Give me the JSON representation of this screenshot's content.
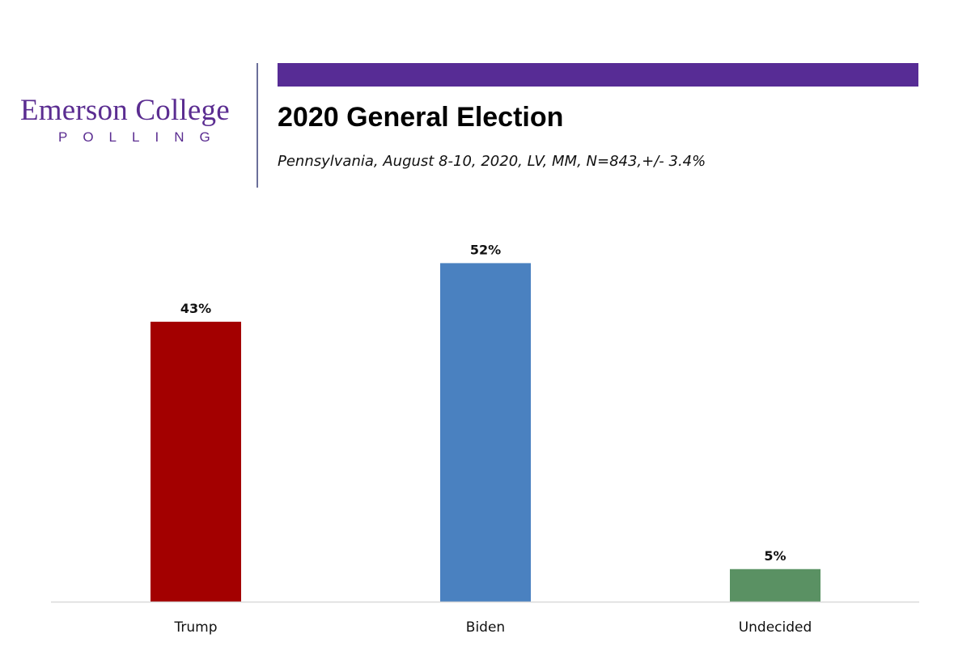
{
  "logo": {
    "main": "Emerson College",
    "sub": "POLLING"
  },
  "header": {
    "title": "2020 General Election",
    "subtitle": "Pennsylvania, August 8-10, 2020, LV, MM,  N=843,+/-  3.4%"
  },
  "colors": {
    "brand_purple": "#572c95",
    "trump": "#a30000",
    "biden": "#4a81c0",
    "undecided": "#5a9163"
  },
  "chart_data": {
    "type": "bar",
    "title": "2020 General Election",
    "subtitle": "Pennsylvania, August 8-10, 2020, LV, MM,  N=843,+/-  3.4%",
    "categories": [
      "Trump",
      "Biden",
      "Undecided"
    ],
    "values": [
      43,
      52,
      5
    ],
    "data_labels": [
      "43%",
      "52%",
      "5%"
    ],
    "colors": [
      "#a30000",
      "#4a81c0",
      "#5a9163"
    ],
    "xlabel": "",
    "ylabel": "",
    "ylim": [
      0,
      52
    ],
    "grid": false,
    "legend": "none"
  }
}
